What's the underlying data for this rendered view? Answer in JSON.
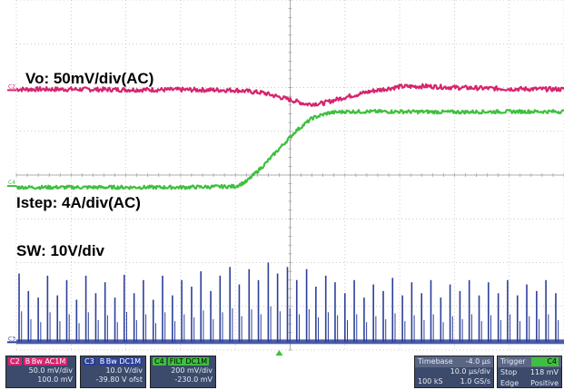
{
  "chart_data": {
    "type": "line",
    "title": "",
    "grid": true,
    "divisions": {
      "x": 10,
      "y": 8
    },
    "x_units": "div",
    "y_units": "div",
    "x_range": [
      0,
      10
    ],
    "y_range": [
      0,
      8
    ],
    "channel_markers": [
      {
        "name": "C2",
        "color": "#d6246e",
        "offset_div": 5.94
      },
      {
        "name": "C4",
        "color": "#3fbf3f",
        "offset_div": 3.75
      },
      {
        "name": "C3",
        "color": "#2b3f9a",
        "offset_div": 0.18
      }
    ],
    "trigger_marker": {
      "x_div": 4.8,
      "color": "#3fbf3f"
    },
    "series": [
      {
        "name": "Vo: 50mV/div(AC)",
        "color": "#d6246e",
        "x": [
          0,
          1,
          2,
          3,
          4,
          4.5,
          5,
          5.3,
          5.6,
          6,
          6.5,
          7,
          7.5,
          8,
          9,
          10
        ],
        "y": [
          5.96,
          5.96,
          5.95,
          5.95,
          5.94,
          5.88,
          5.72,
          5.62,
          5.64,
          5.78,
          5.92,
          6.02,
          6.03,
          6.0,
          5.97,
          5.96
        ],
        "noise": 0.05,
        "style": "line"
      },
      {
        "name": "Istep: 4A/div(AC)",
        "color": "#3fbf3f",
        "x": [
          0,
          1,
          2,
          3,
          4,
          4.2,
          4.5,
          4.8,
          5.1,
          5.4,
          5.7,
          6,
          7,
          8,
          9,
          10
        ],
        "y": [
          3.72,
          3.72,
          3.72,
          3.72,
          3.74,
          3.85,
          4.2,
          4.6,
          5.0,
          5.3,
          5.42,
          5.45,
          5.45,
          5.44,
          5.45,
          5.45
        ],
        "noise": 0.04,
        "style": "line"
      },
      {
        "name": "SW: 10V/div",
        "color": "#2b3f9a",
        "baseline": 0.18,
        "x": [
          0.05,
          0.22,
          0.4,
          0.57,
          0.75,
          0.92,
          1.1,
          1.27,
          1.45,
          1.62,
          1.8,
          1.97,
          2.15,
          2.32,
          2.5,
          2.67,
          2.85,
          3.02,
          3.2,
          3.37,
          3.55,
          3.72,
          3.9,
          4.07,
          4.25,
          4.42,
          4.6,
          4.77,
          4.95,
          5.12,
          5.3,
          5.47,
          5.65,
          5.82,
          6.0,
          6.17,
          6.35,
          6.52,
          6.7,
          6.87,
          7.05,
          7.22,
          7.4,
          7.57,
          7.75,
          7.92,
          8.1,
          8.27,
          8.45,
          8.62,
          8.8,
          8.97,
          9.15,
          9.32,
          9.5,
          9.67,
          9.85
        ],
        "y": [
          1.75,
          1.35,
          1.2,
          1.7,
          1.25,
          1.6,
          1.15,
          1.7,
          1.3,
          1.55,
          1.2,
          1.72,
          1.3,
          1.6,
          1.15,
          1.7,
          1.25,
          1.6,
          1.45,
          1.8,
          1.35,
          1.7,
          1.9,
          1.5,
          1.85,
          1.6,
          2.0,
          1.75,
          1.9,
          1.6,
          1.85,
          1.45,
          1.7,
          1.55,
          1.3,
          1.6,
          1.2,
          1.5,
          1.35,
          1.65,
          1.25,
          1.55,
          1.3,
          1.6,
          1.2,
          1.5,
          1.35,
          1.6,
          1.25,
          1.55,
          1.3,
          1.6,
          1.25,
          1.5,
          1.35,
          1.6,
          1.3
        ],
        "style": "pulses"
      }
    ],
    "labels": {
      "vo": "Vo: 50mV/div(AC)",
      "istep": "Istep: 4A/div(AC)",
      "sw": "SW: 10V/div"
    }
  },
  "status_bar": {
    "c2": {
      "name": "C2",
      "flags": "B Bw  AC1M",
      "scale": "50.0 mV/div",
      "offset": "100.0 mV"
    },
    "c3": {
      "name": "C3",
      "flags": "B Bw  DC1M",
      "scale": "10.0 V/div",
      "offset": "-39.80 V ofst"
    },
    "c4": {
      "name": "C4",
      "flags": "FILT  DC1M",
      "scale": "200 mV/div",
      "offset": "-230.0 mV"
    },
    "timebase": {
      "label": "Timebase",
      "value": "-4.0 μs",
      "rate": "10.0 μs/div",
      "samples": "100 kS",
      "srate": "1.0 GS/s"
    },
    "trigger": {
      "label": "Trigger",
      "ch": "C4",
      "mode": "Stop",
      "level": "118 mV",
      "type": "Edge",
      "slope": "Positive"
    }
  }
}
